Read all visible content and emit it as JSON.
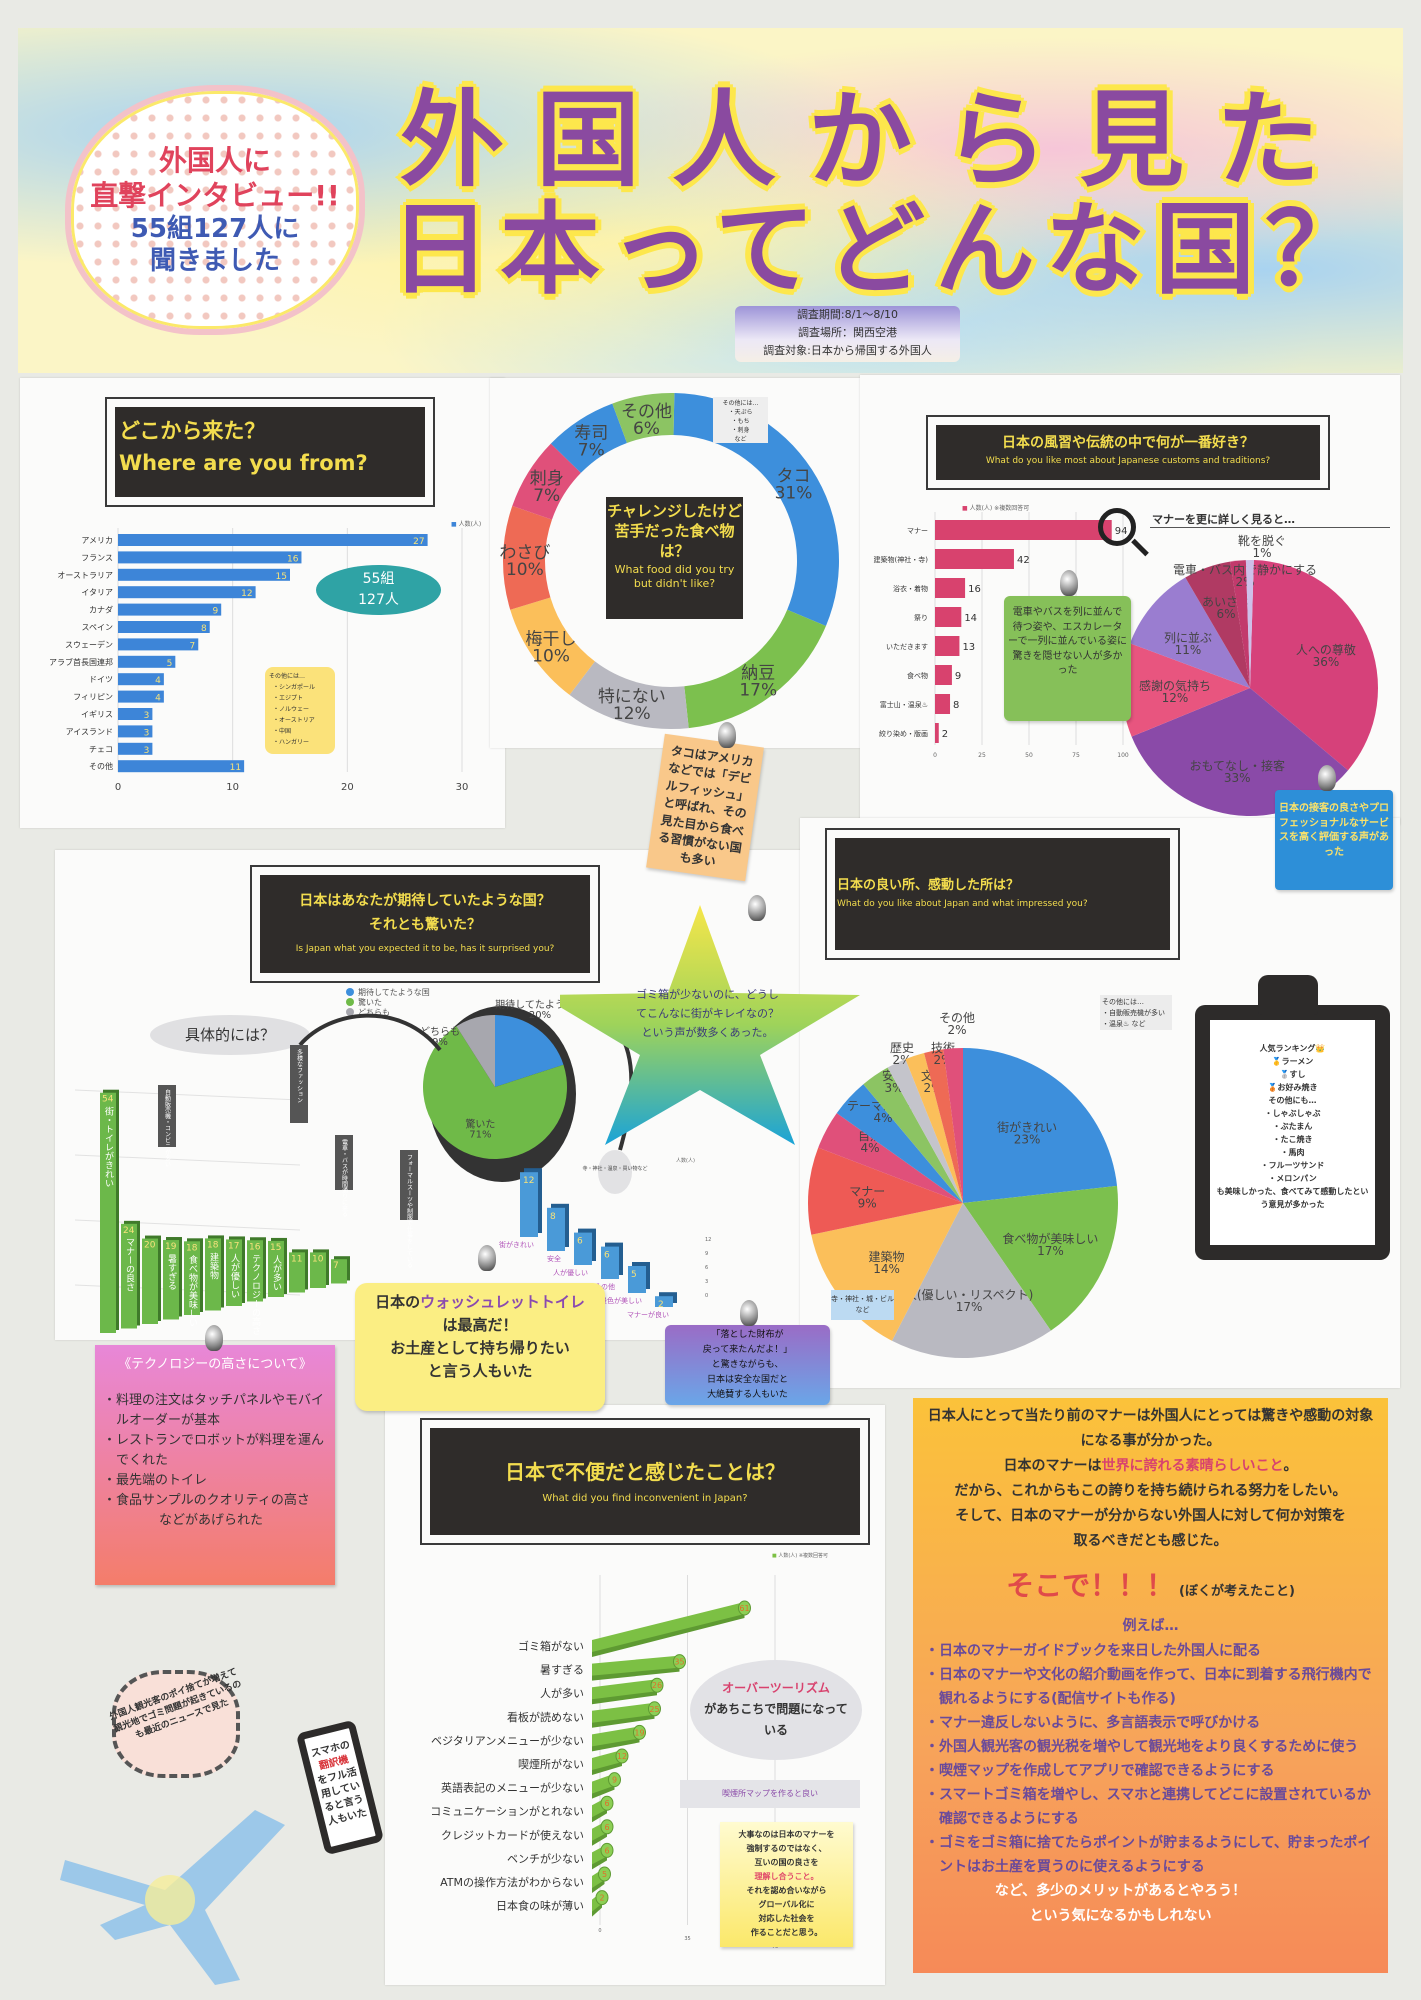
{
  "banner": {
    "bubble": {
      "line1": "外国人に",
      "line2": "直撃インタビュー!!",
      "line3": "55組127人に",
      "line4": "聞きました"
    },
    "title_line1": "外国人から見た",
    "title_line2": "日本ってどんな国？",
    "survey": {
      "period": "調査期間:8/1～8/10",
      "place": "調査場所：関西空港",
      "target": "調査対象:日本から帰国する外国人"
    }
  },
  "colors": {
    "title_purple": "#8a4aa0",
    "title_outline": "#fde74c",
    "heading_bg": "#2f2c2a",
    "heading_text": "#f3dd4e"
  },
  "where": {
    "title_ja": "どこから来た？",
    "title_en": "Where are you from?",
    "legend": "人数(人)",
    "badge_line1": "55組",
    "badge_line2": "127人",
    "others_note": {
      "title": "その他には…",
      "items": [
        "・シンガポール",
        "・エジプト",
        "・ノルウェー",
        "・オーストリア",
        "・中国",
        "・ハンガリー"
      ]
    }
  },
  "food": {
    "title_ja": "チャレンジしたけど苦手だった食べ物は？",
    "title_en": "What food did you try but didn't like?",
    "others_note": [
      "その他には…",
      "・天ぷら",
      "・もち",
      "・刺身",
      "など"
    ],
    "octopus_note": "タコはアメリカなどでは「デビルフィッシュ」と呼ばれ、その見た目から食べる習慣がない国も多い"
  },
  "customs": {
    "title_ja": "日本の風習や伝統の中で何が一番好き？",
    "title_en": "What do you like most about Japanese customs and traditions?",
    "legend": "人数(人) ※複数回答可",
    "detail_heading": "マナーを更に詳しく見ると…",
    "green_note": "電車やバスを列に並んで待つ姿や、エスカレーターで一列に並んでいる姿に驚きを隠せない人が多かった",
    "blue_note": "日本の接客の良さやプロフェッショナルなサービスを高く評価する声があった"
  },
  "expected": {
    "title_ja1": "日本はあなたが期待していたような国？",
    "title_ja2": "それとも驚いた？",
    "title_en": "Is Japan what you expected it to be, has it surprised you?",
    "specifics": "具体的には？",
    "legend_bars": "人数(人)",
    "callouts": {
      "vending": "自動販売機・コンビニが多い",
      "fashion": "多様なファッション",
      "trains": "電車・バスが時間通りに来る",
      "suits": "フォーマルスーツや制服で仕事をしている",
      "temples": "寺・神社・温泉・買い物など"
    }
  },
  "star_note": "ゴミ箱が少ないのに、どうしてこんなに街がキレイなの？という声が数多くあった。",
  "impressed": {
    "title_ja": "日本の良い所、感動した所は？",
    "title_en": "What do you like about Japan and what impressed you?",
    "others_note": [
      "その他には…",
      "・自動販売機が多い",
      "・温泉♨ など"
    ],
    "building_note": "寺・神社・城・ビルなど",
    "clipboard": {
      "ranking_title": "人気ランキング👑",
      "ranking": [
        "🥇ラーメン",
        "🥈すし",
        "🥉お好み焼き"
      ],
      "others_title": "その他にも…",
      "others": [
        "・しゃぶしゃぶ",
        "・ぶたまん",
        "・たこ焼き",
        "・馬肉",
        "・フルーツサンド",
        "・メロンパン"
      ],
      "footer": "も美味しかった、食べてみて感動したという意見が多かった"
    }
  },
  "notes": {
    "toilet": {
      "pre": "日本の",
      "highlight": "ウォッシュレットトイレ",
      "post1": "は最高だ！",
      "post2": "お土産として持ち帰りたい",
      "post3": "と言う人もいた"
    },
    "wallet": [
      "「落とした財布が",
      "戻って来たんだよ！」",
      "と驚きながらも、",
      "日本は安全な国だと",
      "大絶賛する人もいた"
    ],
    "tech": {
      "title": "《テクノロジーの高さについて》",
      "items": [
        "・料理の注文はタッチパネルやモバイルオーダーが基本",
        "・レストランでロボットが料理を運んでくれた",
        "・最先端のトイレ",
        "・食品サンプルのクオリティの高さ"
      ],
      "footer": "などがあげられた"
    },
    "burst": "外国人観光客のポイ捨てが増えて観光地でゴミ問題が起きているのも最近のニュースで見た",
    "phone": {
      "pre": "スマホの",
      "highlight": "翻訳機",
      "post": "をフル活用していると言う人もいた"
    }
  },
  "inconvenient": {
    "title_ja": "日本で不便だと感じたことは？",
    "title_en": "What did you find inconvenient in Japan?",
    "legend": "人数(人) ※複数回答可",
    "overtourism": {
      "highlight": "オーバーツーリズム",
      "rest": "があちこちで問題になっている"
    },
    "smoking_note": "喫煙所マップを作ると良い",
    "yellow_note": {
      "l1": "大事なのは日本のマナーを",
      "l2": "強制するのではなく、",
      "l3": "互いの国の良さを",
      "highlight": "理解し合うこと。",
      "l5": "それを認め合いながら",
      "l6": "グローバル化に",
      "l7": "対応した社会を",
      "l8": "作ることだと思う。"
    }
  },
  "conclusion": {
    "p1": "日本人にとって当たり前のマナーは外国人にとっては驚きや感動の対象になる事が分かった。",
    "p2_pre": "日本のマナーは",
    "p2_highlight": "世界に誇れる素晴らしいこと",
    "p2_post": "。",
    "p3": "だから、これからもこの誇りを持ち続けられる努力をしたい。",
    "p4": "そして、日本のマナーが分からない外国人に対して何か対策を取るべきだとも感じた。",
    "soko": "そこで！！！",
    "soko_sub": "(ぼくが考えたこと)",
    "example": "例えば…",
    "items": [
      "・日本のマナーガイドブックを来日した外国人に配る",
      "・日本のマナーや文化の紹介動画を作って、日本に到着する飛行機内で観れるようにする(配信サイトも作る)",
      "・マナー違反しないように、多言語表示で呼びかける",
      "・外国人観光客の観光税を増やして観光地をより良くするために使う",
      "・喫煙マップを作成してアプリで確認できるようにする",
      "・スマートゴミ箱を増やし、スマホと連携してどこに設置されているか確認できるようにする",
      "・ゴミをゴミ箱に捨てたらポイントが貯まるようにして、貯まったポイントはお土産を買うのに使えるようにする"
    ],
    "end1": "など、多少のメリットがあるとやろう！",
    "end2": "という気になるかもしれない"
  },
  "chart_data": [
    {
      "type": "bar",
      "orientation": "horizontal",
      "title": "どこから来た？ Where are you from?",
      "legend": "人数(人)",
      "categories": [
        "アメリカ",
        "フランス",
        "オーストラリア",
        "イタリア",
        "カナダ",
        "スペイン",
        "スウェーデン",
        "アラブ首長国連邦",
        "ドイツ",
        "フィリピン",
        "イギリス",
        "アイスランド",
        "チェコ",
        "その他"
      ],
      "values": [
        27,
        16,
        15,
        12,
        9,
        8,
        7,
        5,
        4,
        4,
        3,
        3,
        3,
        11
      ],
      "xlim": [
        0,
        30
      ],
      "xticks": [
        0,
        10,
        20,
        30
      ],
      "color": "#3d85d8",
      "grid": true
    },
    {
      "type": "pie",
      "donut": true,
      "title": "チャレンジしたけど苦手だった食べ物は？",
      "categories": [
        "タコ",
        "納豆",
        "特にない",
        "梅干し",
        "わさび",
        "刺身",
        "寿司",
        "その他"
      ],
      "values": [
        31,
        17,
        12,
        10,
        10,
        7,
        7,
        6
      ],
      "unit": "%",
      "colors": [
        "#3d8fdc",
        "#7cc04e",
        "#b9b9c1",
        "#fbbf5a",
        "#ee6a55",
        "#e0507a",
        "#3d8fdc",
        "#8cc463"
      ]
    },
    {
      "type": "bar",
      "orientation": "horizontal",
      "title": "日本の風習や伝統の中で何が一番好き？",
      "legend": "人数(人) ※複数回答可",
      "categories": [
        "マナー",
        "建築物(神社・寺)",
        "浴衣・着物",
        "祭り",
        "いただきます",
        "食べ物",
        "富士山・温泉♨",
        "絞り染め・版画"
      ],
      "values": [
        94,
        42,
        16,
        14,
        13,
        9,
        8,
        2
      ],
      "xlim": [
        0,
        100
      ],
      "xticks": [
        0,
        25,
        50,
        75,
        100
      ],
      "color": "#d8426e",
      "grid": true
    },
    {
      "type": "pie",
      "title": "マナーを更に詳しく見ると…",
      "categories": [
        "人への尊敬",
        "おもてなし・接客",
        "感謝の気持ち",
        "列に並ぶ",
        "あいさつ",
        "電車・バス内で静かにする",
        "靴を脱ぐ"
      ],
      "values": [
        36,
        33,
        12,
        11,
        6,
        2,
        1
      ],
      "unit": "%",
      "colors": [
        "#d6417a",
        "#8a4aa8",
        "#e8557f",
        "#9a7dd0",
        "#b03a63",
        "#c23a6c",
        "#cdbfe9"
      ]
    },
    {
      "type": "pie",
      "title": "日本はあなたが期待していたような国？それとも驚いた？",
      "categories": [
        "期待してたような国",
        "驚いた",
        "どちらも"
      ],
      "values": [
        20,
        71,
        9
      ],
      "unit": "%",
      "colors": [
        "#3d8fdc",
        "#6fba48",
        "#a7a7ae"
      ],
      "legend": "top-left"
    },
    {
      "type": "bar",
      "title": "具体的には？（驚いた）",
      "legend": "人数(人)",
      "categories": [
        "街・トイレがきれい",
        "マナーの良さ",
        "自動販売機・コンビニが多い",
        "暑すぎる",
        "食べ物が美味しい",
        "建築物",
        "人が優しい",
        "テクノロジーの高さ",
        "人が多い",
        "多様なファッション",
        "電車・バスが時間通りに来る",
        "フォーマルスーツや制服で仕事をしている"
      ],
      "values": [
        54,
        24,
        20,
        19,
        18,
        18,
        17,
        16,
        15,
        11,
        10,
        7
      ],
      "color": "#6cb84a"
    },
    {
      "type": "bar",
      "title": "具体的には？（期待してたような国）",
      "legend": "人数(人)",
      "categories": [
        "街がきれい",
        "安全",
        "人が優しい",
        "その他",
        "景色が美しい",
        "マナーが良い"
      ],
      "values": [
        12,
        8,
        6,
        6,
        5,
        2
      ],
      "yticks": [
        0,
        3,
        6,
        9,
        12
      ],
      "color": "#4a9ad8"
    },
    {
      "type": "pie",
      "title": "日本の良い所、感動した所は？",
      "categories": [
        "街がきれい",
        "食べ物が美味しい",
        "人(優しい・リスペクト)",
        "建築物",
        "マナー",
        "自然",
        "テーマパーク",
        "安全",
        "歴史",
        "文化",
        "技術",
        "その他"
      ],
      "values": [
        23,
        17,
        17,
        14,
        9,
        4,
        4,
        3,
        2,
        2,
        2,
        2
      ],
      "unit": "%",
      "colors": [
        "#3d8fdc",
        "#7cc04e",
        "#b9b9c1",
        "#fbbf5a",
        "#ee5a55",
        "#e0507a",
        "#3d8fdc",
        "#8cc463",
        "#c4c4cb",
        "#fbbf5a",
        "#ee6a55",
        "#e0507a"
      ]
    },
    {
      "type": "bar",
      "orientation": "horizontal",
      "title": "日本で不便だと感じたことは？",
      "legend": "人数(人) ※複数回答可",
      "categories": [
        "ゴミ箱がない",
        "暑すぎる",
        "人が多い",
        "看板が読めない",
        "ベジタリアンメニューが少ない",
        "喫煙所がない",
        "英語表記のメニューが少ない",
        "コミュニケーションがとれない",
        "クレジットカードが使えない",
        "ベンチが少ない",
        "ATMの操作方法がわからない",
        "日本食の味が薄い"
      ],
      "values": [
        61,
        35,
        26,
        25,
        19,
        12,
        9,
        6,
        6,
        6,
        5,
        2
      ],
      "xticks": [
        0,
        35,
        70
      ],
      "color": "#7cc044"
    }
  ]
}
